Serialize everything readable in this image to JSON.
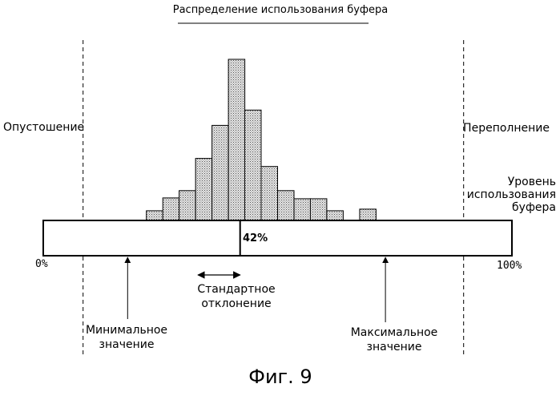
{
  "title": "Распределение использования буфера",
  "labels": {
    "empty": "Опустошение",
    "overflow": "Переполнение",
    "level": [
      "Уровень",
      "использования",
      "буфера"
    ],
    "zero": "0%",
    "hundred": "100%",
    "current_percent": "42%",
    "std": [
      "Стандартное",
      "отклонение"
    ],
    "min": [
      "Минимальное",
      "значение"
    ],
    "max": [
      "Максимальное",
      "значение"
    ],
    "figure": "Фиг. 9"
  },
  "colors": {
    "ink": "#000000",
    "bar_fill": "#c8c8c8",
    "paper": "#ffffff"
  },
  "chart_data": {
    "type": "bar",
    "title": "Распределение использования буфера",
    "x_range": [
      0,
      100
    ],
    "bins": [
      {
        "x": [
          22,
          25.5
        ],
        "v": 12
      },
      {
        "x": [
          25.5,
          29
        ],
        "v": 28
      },
      {
        "x": [
          29,
          32.5
        ],
        "v": 37
      },
      {
        "x": [
          32.5,
          36
        ],
        "v": 77
      },
      {
        "x": [
          36,
          39.5
        ],
        "v": 118
      },
      {
        "x": [
          39.5,
          43
        ],
        "v": 200
      },
      {
        "x": [
          43,
          46.5
        ],
        "v": 137
      },
      {
        "x": [
          46.5,
          50
        ],
        "v": 67
      },
      {
        "x": [
          50,
          53.5
        ],
        "v": 37
      },
      {
        "x": [
          53.5,
          57
        ],
        "v": 27
      },
      {
        "x": [
          57,
          60.5
        ],
        "v": 27
      },
      {
        "x": [
          60.5,
          64
        ],
        "v": 12
      },
      {
        "x": [
          67.5,
          71
        ],
        "v": 14
      }
    ],
    "current_level": 42,
    "minimum": 18,
    "maximum": 73,
    "std_range": [
      33,
      42
    ],
    "empty_threshold": 8.5,
    "overflow_threshold": 89.7
  }
}
